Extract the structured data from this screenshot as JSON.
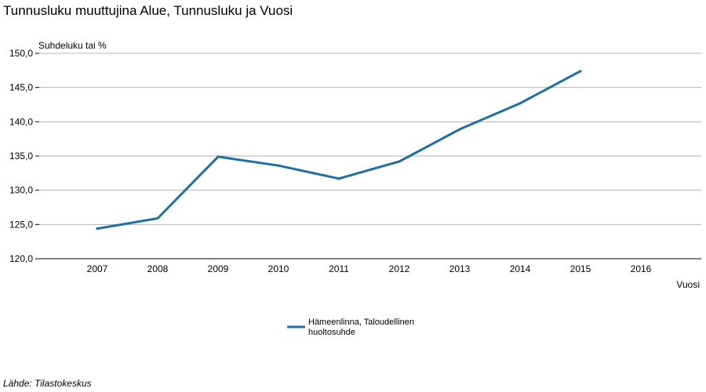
{
  "chart_data": {
    "type": "line",
    "title": "Tunnusluku muuttujina Alue, Tunnusluku ja Vuosi",
    "ylabel": "Suhdeluku tai %",
    "xlabel": "Vuosi",
    "categories": [
      "2007",
      "2008",
      "2009",
      "2010",
      "2011",
      "2012",
      "2013",
      "2014",
      "2015",
      "2016"
    ],
    "y_ticks": [
      "120,0",
      "125,0",
      "130,0",
      "135,0",
      "140,0",
      "145,0",
      "150,0"
    ],
    "ylim": [
      120,
      150
    ],
    "grid": true,
    "legend_position": "bottom",
    "series": [
      {
        "name": "Hämeenlinna, Taloudellinen huoltosuhde",
        "name_lines": [
          "Hämeenlinna, Taloudellinen",
          "huoltosuhde"
        ],
        "color": "#1f6fa6",
        "values": [
          124.4,
          125.9,
          134.9,
          133.6,
          131.7,
          134.2,
          138.9,
          142.7,
          147.4,
          null
        ]
      }
    ],
    "source": "Lähde: Tilastokeskus"
  }
}
